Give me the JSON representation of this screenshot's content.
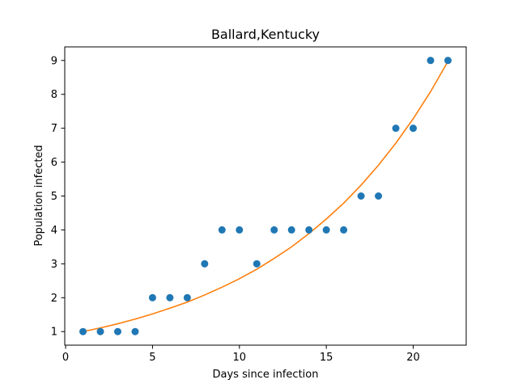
{
  "chart_data": {
    "type": "scatter",
    "title": "Ballard,Kentucky",
    "xlabel": "Days since infection",
    "ylabel": "Population infected",
    "xlim": [
      -0.05,
      23.05
    ],
    "ylim": [
      0.6,
      9.4
    ],
    "xticks": [
      0,
      5,
      10,
      15,
      20
    ],
    "yticks": [
      1,
      2,
      3,
      4,
      5,
      6,
      7,
      8,
      9
    ],
    "grid": false,
    "series": [
      {
        "kind": "scatter",
        "color": "#1f77b4",
        "x": [
          1,
          2,
          3,
          4,
          5,
          6,
          7,
          8,
          9,
          10,
          11,
          12,
          13,
          14,
          15,
          16,
          17,
          18,
          19,
          20,
          21,
          22
        ],
        "y": [
          1,
          1,
          1,
          1,
          2,
          2,
          2,
          3,
          4,
          4,
          3,
          4,
          4,
          4,
          4,
          4,
          5,
          5,
          7,
          7,
          9,
          9
        ]
      },
      {
        "kind": "line",
        "color": "#ff7f0e",
        "x": [
          1,
          2,
          3,
          4,
          5,
          6,
          7,
          8,
          9,
          10,
          11,
          12,
          13,
          14,
          15,
          16,
          17,
          18,
          19,
          20,
          21,
          22
        ],
        "y": [
          1.0,
          1.11,
          1.23,
          1.37,
          1.52,
          1.69,
          1.87,
          2.08,
          2.31,
          2.56,
          2.84,
          3.16,
          3.5,
          3.89,
          4.32,
          4.79,
          5.32,
          5.91,
          6.56,
          7.28,
          8.08,
          8.97
        ]
      }
    ]
  }
}
